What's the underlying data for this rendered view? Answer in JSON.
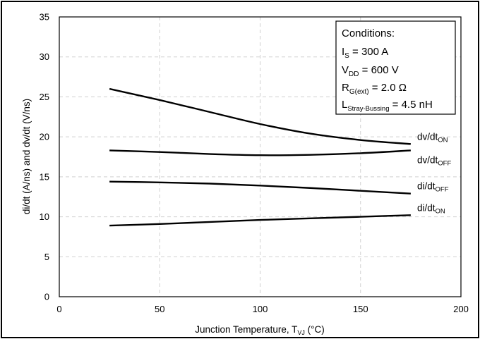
{
  "chart_data": {
    "type": "line",
    "xlabel": {
      "main": "Junction Temperature, T",
      "sub": "VJ",
      "unit": " (°C)"
    },
    "ylabel": "di/dt (A/ns) and dv/dt (V/ns)",
    "xlim": [
      0,
      200
    ],
    "ylim": [
      0,
      35
    ],
    "x_ticks": [
      0,
      50,
      100,
      150,
      200
    ],
    "y_ticks": [
      0,
      5,
      10,
      15,
      20,
      25,
      30,
      35
    ],
    "grid": true,
    "series": [
      {
        "name": "dv/dt_ON",
        "label_main": "dv/dt",
        "label_sub": "ON",
        "x": [
          25,
          50,
          75,
          100,
          125,
          150,
          175
        ],
        "y": [
          26.0,
          24.6,
          23.1,
          21.6,
          20.4,
          19.6,
          19.1
        ]
      },
      {
        "name": "dv/dt_OFF",
        "label_main": "dv/dt",
        "label_sub": "OFF",
        "x": [
          25,
          50,
          75,
          100,
          125,
          150,
          175
        ],
        "y": [
          18.3,
          18.1,
          17.85,
          17.7,
          17.75,
          17.95,
          18.3
        ]
      },
      {
        "name": "di/dt_OFF",
        "label_main": "di/dt",
        "label_sub": "OFF",
        "x": [
          25,
          50,
          75,
          100,
          125,
          150,
          175
        ],
        "y": [
          14.4,
          14.3,
          14.15,
          13.9,
          13.6,
          13.25,
          12.9
        ]
      },
      {
        "name": "di/dt_ON",
        "label_main": "di/dt",
        "label_sub": "ON",
        "x": [
          25,
          50,
          75,
          100,
          125,
          150,
          175
        ],
        "y": [
          8.9,
          9.1,
          9.35,
          9.6,
          9.8,
          10.0,
          10.2
        ]
      }
    ],
    "conditions": {
      "title": "Conditions:",
      "lines": [
        {
          "main": "I",
          "sub": "S",
          "rest": " = 300 A"
        },
        {
          "main": "V",
          "sub": "DD",
          "rest": " = 600 V"
        },
        {
          "main": "R",
          "sub": "G(ext)",
          "rest": " = 2.0 Ω"
        },
        {
          "main": "L",
          "sub": "Stray-Bussing",
          "rest": " = 4.5 nH"
        }
      ]
    }
  }
}
